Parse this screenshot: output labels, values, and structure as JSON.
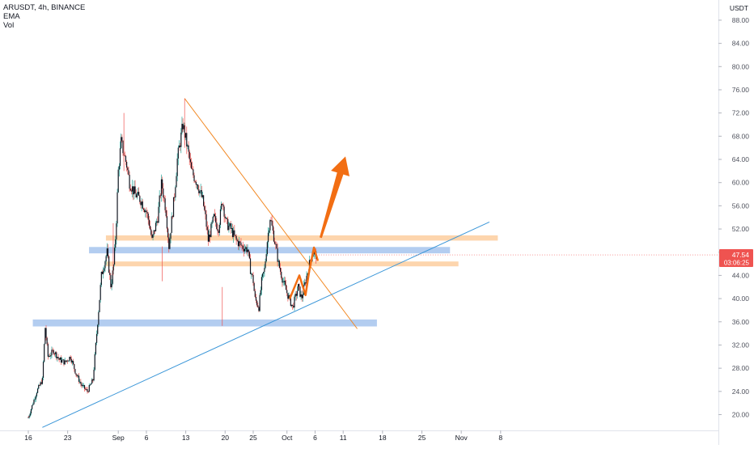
{
  "legend": {
    "symbol_line": "ARUSDT, 4h, BINANCE",
    "indicator_1": "EMA",
    "indicator_2": "Vol"
  },
  "chart_data": {
    "type": "candlestick",
    "symbol": "ARUSDT",
    "interval": "4h",
    "exchange": "BINANCE",
    "currency": "USDT",
    "ylim": [
      17.5,
      92.0
    ],
    "y_ticks": [
      "88.00",
      "84.00",
      "80.00",
      "76.00",
      "72.00",
      "68.00",
      "64.00",
      "60.00",
      "56.00",
      "52.00",
      "48.00",
      "44.00",
      "40.00",
      "36.00",
      "32.00",
      "28.00",
      "24.00",
      "20.00"
    ],
    "x_ticks": [
      {
        "label": "16",
        "day": 0
      },
      {
        "label": "23",
        "day": 7
      },
      {
        "label": "Sep",
        "day": 16
      },
      {
        "label": "6",
        "day": 21
      },
      {
        "label": "13",
        "day": 28
      },
      {
        "label": "20",
        "day": 35
      },
      {
        "label": "25",
        "day": 40
      },
      {
        "label": "Oct",
        "day": 46
      },
      {
        "label": "6",
        "day": 51
      },
      {
        "label": "11",
        "day": 56
      },
      {
        "label": "18",
        "day": 63
      },
      {
        "label": "25",
        "day": 70
      },
      {
        "label": "Nov",
        "day": 77
      },
      {
        "label": "8",
        "day": 84
      }
    ],
    "last_price": "47.54",
    "countdown": "03:06:25",
    "price_path": [
      [
        0,
        19.5
      ],
      [
        1.5,
        24
      ],
      [
        2.5,
        26
      ],
      [
        3,
        35
      ],
      [
        3.5,
        30
      ],
      [
        4.5,
        31
      ],
      [
        5.5,
        29.5
      ],
      [
        6.5,
        29
      ],
      [
        7.5,
        30
      ],
      [
        8.5,
        27
      ],
      [
        9.5,
        25
      ],
      [
        10.5,
        24
      ],
      [
        11.5,
        26
      ],
      [
        12,
        32
      ],
      [
        12.5,
        38
      ],
      [
        13,
        44
      ],
      [
        14,
        48
      ],
      [
        14.7,
        42
      ],
      [
        15.2,
        46
      ],
      [
        15.6,
        52
      ],
      [
        16,
        62
      ],
      [
        16.5,
        67
      ],
      [
        17.5,
        63
      ],
      [
        18,
        60
      ],
      [
        19,
        58
      ],
      [
        20,
        57
      ],
      [
        21,
        55
      ],
      [
        21.5,
        53
      ],
      [
        22,
        50
      ],
      [
        23,
        54
      ],
      [
        23.7,
        60
      ],
      [
        24.5,
        55
      ],
      [
        25,
        49
      ],
      [
        26,
        58
      ],
      [
        26.5,
        64
      ],
      [
        27.5,
        70
      ],
      [
        28.3,
        66
      ],
      [
        29,
        62
      ],
      [
        30,
        60
      ],
      [
        31,
        57
      ],
      [
        31.5,
        54
      ],
      [
        32,
        50
      ],
      [
        33,
        54
      ],
      [
        33.8,
        52
      ],
      [
        34.5,
        57
      ],
      [
        35.2,
        53
      ],
      [
        36,
        52
      ],
      [
        37,
        50
      ],
      [
        38,
        49
      ],
      [
        39,
        48.5
      ],
      [
        39.5,
        45
      ],
      [
        40,
        43
      ],
      [
        40.3,
        40
      ],
      [
        41,
        38.5
      ],
      [
        41.5,
        43
      ],
      [
        42,
        45
      ],
      [
        42.5,
        50
      ],
      [
        43,
        54
      ],
      [
        44,
        49
      ],
      [
        44.5,
        46
      ],
      [
        45.3,
        43
      ],
      [
        46,
        41
      ],
      [
        47,
        38.5
      ],
      [
        48,
        42
      ],
      [
        48.6,
        40
      ],
      [
        49.3,
        43
      ],
      [
        50,
        46
      ],
      [
        50.6,
        48
      ],
      [
        51.2,
        47.5
      ]
    ],
    "horizontal_zones": [
      {
        "type": "support",
        "color": "#b3cdf0",
        "ymin": 35.2,
        "ymax": 36.4,
        "x_start": 0.8,
        "x_end": 62
      },
      {
        "type": "resistance",
        "color": "#fdd5ad",
        "ymin": 50.0,
        "ymax": 50.9,
        "x_start": 13.8,
        "x_end": 83.5
      },
      {
        "type": "support",
        "color": "#b3cdf0",
        "ymin": 47.8,
        "ymax": 48.9,
        "x_start": 10.8,
        "x_end": 75
      },
      {
        "type": "resistance",
        "color": "#fdd5ad",
        "ymin": 45.6,
        "ymax": 46.4,
        "x_start": 13.8,
        "x_end": 76.5
      }
    ],
    "trendlines": [
      {
        "color": "#f28a26",
        "points": [
          [
            27.8,
            74.5
          ],
          [
            58.5,
            34.8
          ]
        ]
      },
      {
        "color": "#3a96d8",
        "points": [
          [
            2.5,
            17.8
          ],
          [
            82,
            53.2
          ]
        ]
      }
    ],
    "projected_path": [
      [
        46.5,
        40
      ],
      [
        48.2,
        44
      ],
      [
        49.3,
        40.6
      ],
      [
        50,
        45
      ],
      [
        50.8,
        48.8
      ],
      [
        51.5,
        46.5
      ]
    ],
    "arrow": {
      "color": "#f26e13",
      "from": [
        52,
        50.5
      ],
      "to": [
        56.4,
        64.5
      ]
    }
  }
}
